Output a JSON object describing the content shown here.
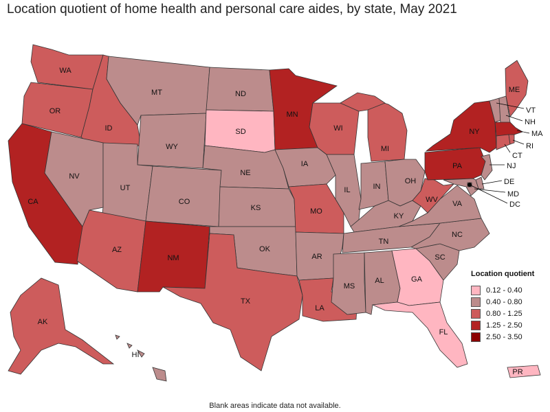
{
  "title": "Location quotient of home health and personal care aides, by state, May 2021",
  "footnote": "Blank areas indicate data not available.",
  "legend": {
    "title": "Location quotient",
    "classes": [
      {
        "label": "0.12 - 0.40",
        "color": "#ffb6c1"
      },
      {
        "label": "0.40 - 0.80",
        "color": "#bc8c8c"
      },
      {
        "label": "0.80 - 1.25",
        "color": "#cd5c5c"
      },
      {
        "label": "1.25 - 2.50",
        "color": "#b22222"
      },
      {
        "label": "2.50 - 3.50",
        "color": "#8b0000"
      }
    ]
  },
  "states": {
    "WA": {
      "label": "WA",
      "class": 2
    },
    "OR": {
      "label": "OR",
      "class": 2
    },
    "CA": {
      "label": "CA",
      "class": 3
    },
    "ID": {
      "label": "ID",
      "class": 2
    },
    "NV": {
      "label": "NV",
      "class": 1
    },
    "MT": {
      "label": "MT",
      "class": 1
    },
    "WY": {
      "label": "WY",
      "class": 1
    },
    "UT": {
      "label": "UT",
      "class": 1
    },
    "AZ": {
      "label": "AZ",
      "class": 2
    },
    "CO": {
      "label": "CO",
      "class": 1
    },
    "NM": {
      "label": "NM",
      "class": 3
    },
    "ND": {
      "label": "ND",
      "class": 1
    },
    "SD": {
      "label": "SD",
      "class": 0
    },
    "NE": {
      "label": "NE",
      "class": 1
    },
    "KS": {
      "label": "KS",
      "class": 1
    },
    "OK": {
      "label": "OK",
      "class": 1
    },
    "TX": {
      "label": "TX",
      "class": 2
    },
    "MN": {
      "label": "MN",
      "class": 3
    },
    "IA": {
      "label": "IA",
      "class": 1
    },
    "MO": {
      "label": "MO",
      "class": 2
    },
    "AR": {
      "label": "AR",
      "class": 1
    },
    "LA": {
      "label": "LA",
      "class": 2
    },
    "WI": {
      "label": "WI",
      "class": 2
    },
    "IL": {
      "label": "IL",
      "class": 1
    },
    "MI": {
      "label": "MI",
      "class": 2
    },
    "IN": {
      "label": "IN",
      "class": 1
    },
    "OH": {
      "label": "OH",
      "class": 1
    },
    "KY": {
      "label": "KY",
      "class": 1
    },
    "TN": {
      "label": "TN",
      "class": 1
    },
    "MS": {
      "label": "MS",
      "class": 1
    },
    "AL": {
      "label": "AL",
      "class": 1
    },
    "GA": {
      "label": "GA",
      "class": 0
    },
    "FL": {
      "label": "FL",
      "class": 0
    },
    "SC": {
      "label": "SC",
      "class": 1
    },
    "NC": {
      "label": "NC",
      "class": 1
    },
    "VA": {
      "label": "VA",
      "class": 1
    },
    "WV": {
      "label": "WV",
      "class": 2
    },
    "PA": {
      "label": "PA",
      "class": 3
    },
    "NY": {
      "label": "NY",
      "class": 3
    },
    "ME": {
      "label": "ME",
      "class": 2
    },
    "VT": {
      "label": "VT",
      "class": 1
    },
    "NH": {
      "label": "NH",
      "class": 1
    },
    "MA": {
      "label": "MA",
      "class": 3
    },
    "RI": {
      "label": "RI",
      "class": 2
    },
    "CT": {
      "label": "CT",
      "class": 2
    },
    "NJ": {
      "label": "NJ",
      "class": 1
    },
    "DE": {
      "label": "DE",
      "class": 1
    },
    "MD": {
      "label": "MD",
      "class": 1
    },
    "DC": {
      "label": "DC",
      "class": 1
    },
    "AK": {
      "label": "AK",
      "class": 2
    },
    "HI": {
      "label": "HI",
      "class": 1
    },
    "PR": {
      "label": "PR",
      "class": 0
    }
  }
}
